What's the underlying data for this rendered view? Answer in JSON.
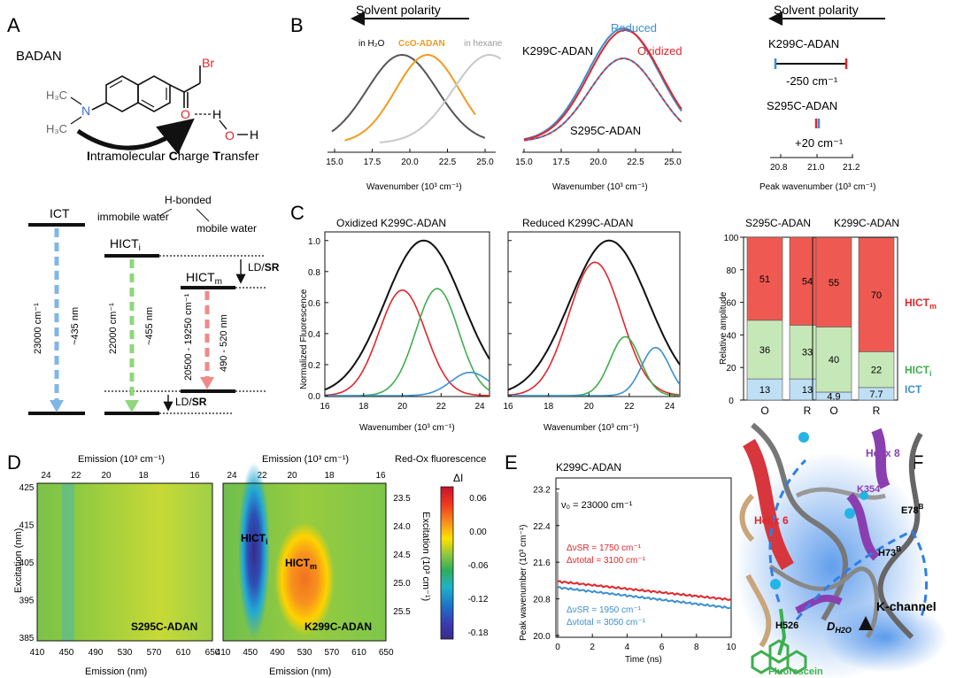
{
  "panels": {
    "A": "A",
    "B": "B",
    "C": "C",
    "D": "D",
    "E": "E",
    "F": "F"
  },
  "colors": {
    "black": "#111111",
    "red": "#e2262b",
    "green": "#3fae4f",
    "blue": "#3b8fd0",
    "orange": "#f39a1e",
    "grey": "#bdbdbd",
    "dark": "#555555",
    "red_fill": "#ee5a52",
    "green_fill": "#c6e7b8",
    "blue_fill": "#bfe0f4",
    "purple": "#8a3fb0"
  },
  "panelA": {
    "molecule_name": "BADAN",
    "ict_label_I": "I",
    "ict_label_rest1": "ntramolecular ",
    "ict_label_C": "C",
    "ict_label_rest2": "harge ",
    "ict_label_T": "T",
    "ict_label_rest3": "ransfer",
    "atoms": {
      "h3c_top": "H₃C",
      "h3c_bot": "H₃C",
      "n": "N",
      "br": "Br",
      "o": "O",
      "h_dash": "H",
      "oh_o": "O",
      "oh_h": "H"
    },
    "levels": {
      "ict": "ICT",
      "hict_i": "HICT",
      "hict_i_sub": "i",
      "hict_m": "HICT",
      "hict_m_sub": "m",
      "hbonded": "H-bonded",
      "immobile": "immobile water",
      "mobile": "mobile water",
      "ldsr_top_ld": "LD/",
      "ldsr_top_sr": "SR",
      "ldsr_bot_ld": "LD/",
      "ldsr_bot_sr": "SR",
      "ict_arrow": [
        "23000 cm⁻¹",
        "~435 nm"
      ],
      "hicti_arrow": [
        "22000 cm⁻¹",
        "~455 nm"
      ],
      "hictm_arrow": [
        "20500 - 19250 cm⁻¹",
        "490 - 520 nm"
      ]
    }
  },
  "panelB": {
    "solvent_polarity": "Solvent polarity",
    "b1": {
      "labels": [
        "in H₂O",
        "CcO-ADAN",
        "in hexane"
      ],
      "ticks": [
        "15.0",
        "17.5",
        "20.0",
        "22.5",
        "25.0"
      ]
    },
    "b2": {
      "reduced": "Reduced",
      "oxidized": "Oxidized",
      "k299": "K299C-ADAN",
      "s295": "S295C-ADAN",
      "ticks": [
        "15.0",
        "17.5",
        "20.0",
        "22.5",
        "25.0"
      ]
    },
    "xlabel": "Wavenumber (10³ cm⁻¹)",
    "b3": {
      "k299": "K299C-ADAN",
      "k299_shift": "-250 cm⁻¹",
      "s295": "S295C-ADAN",
      "s295_shift": "+20 cm⁻¹",
      "ticks": [
        "20.8",
        "21.0",
        "21.2"
      ],
      "xlabel": "Peak wavenumber (10³ cm⁻¹)"
    }
  },
  "panelC": {
    "ox_title": "Oxidized K299C-ADAN",
    "red_title": "Reduced K299C-ADAN",
    "ylabel": "Normalized Fluorescence",
    "xlabel": "Wavenumber (10³ cm⁻¹)",
    "yticks": [
      "0.0",
      "0.2",
      "0.4",
      "0.6",
      "0.8",
      "1.0"
    ],
    "xticks": [
      "16",
      "18",
      "20",
      "22",
      "24"
    ],
    "bar_ylabel": "Relative amplitude",
    "bar_yticks": [
      "0",
      "20",
      "40",
      "60",
      "80",
      "100"
    ],
    "s295_title": "S295C-ADAN",
    "k299_title": "K299C-ADAN",
    "legend": {
      "hictm": "HICT",
      "hictm_sub": "m",
      "hicti": "HICT",
      "hicti_sub": "i",
      "ict": "ICT"
    }
  },
  "chart_data": [
    {
      "type": "bar",
      "title": "S295C-ADAN",
      "ylabel": "Relative amplitude",
      "categories": [
        "O",
        "R"
      ],
      "ylim": [
        0,
        100
      ],
      "series": [
        {
          "name": "ICT",
          "values": [
            13,
            13
          ]
        },
        {
          "name": "HICTi",
          "values": [
            36,
            33
          ]
        },
        {
          "name": "HICTm",
          "values": [
            51,
            54
          ]
        }
      ]
    },
    {
      "type": "bar",
      "title": "K299C-ADAN",
      "ylabel": "Relative amplitude",
      "categories": [
        "O",
        "R"
      ],
      "ylim": [
        0,
        100
      ],
      "series": [
        {
          "name": "ICT",
          "values": [
            4.9,
            7.7
          ]
        },
        {
          "name": "HICTi",
          "values": [
            40,
            22
          ]
        },
        {
          "name": "HICTm",
          "values": [
            55,
            70
          ]
        }
      ]
    },
    {
      "type": "line",
      "title": "K299C-ADAN",
      "xlabel": "Time (ns)",
      "ylabel": "Peak wavenumber (10³ cm⁻¹)",
      "xlim": [
        0,
        10
      ],
      "ylim": [
        20.0,
        23.4
      ],
      "series": [
        {
          "name": "Oxidized",
          "x": [
            0,
            10
          ],
          "y": [
            21.18,
            20.78
          ]
        },
        {
          "name": "Reduced",
          "x": [
            0,
            10
          ],
          "y": [
            21.05,
            20.6
          ]
        }
      ]
    },
    {
      "type": "line",
      "title": "Oxidized K299C-ADAN",
      "xlabel": "Wavenumber (10³ cm⁻¹)",
      "ylabel": "Normalized Fluorescence",
      "xlim": [
        16,
        24.5
      ],
      "ylim": [
        0,
        1.05
      ],
      "series": [
        {
          "name": "total",
          "center": 21.1,
          "width": 2.0,
          "amplitude": 1.0
        },
        {
          "name": "HICTm",
          "center": 20.0,
          "width": 1.2,
          "amplitude": 0.68
        },
        {
          "name": "HICTi",
          "center": 21.8,
          "width": 1.1,
          "amplitude": 0.69
        },
        {
          "name": "ICT",
          "center": 23.5,
          "width": 1.0,
          "amplitude": 0.15
        }
      ]
    },
    {
      "type": "line",
      "title": "Reduced K299C-ADAN",
      "xlabel": "Wavenumber (10³ cm⁻¹)",
      "ylabel": "Normalized Fluorescence",
      "xlim": [
        16,
        24.5
      ],
      "ylim": [
        0,
        1.05
      ],
      "series": [
        {
          "name": "total",
          "center": 21.0,
          "width": 1.95,
          "amplitude": 1.0
        },
        {
          "name": "HICTm",
          "center": 20.3,
          "width": 1.3,
          "amplitude": 0.86
        },
        {
          "name": "HICTi",
          "center": 21.8,
          "width": 0.75,
          "amplitude": 0.38
        },
        {
          "name": "ICT",
          "center": 23.3,
          "width": 0.7,
          "amplitude": 0.31
        }
      ]
    }
  ],
  "panelD": {
    "top_axis": "Emission (10³ cm⁻¹)",
    "top_ticks": [
      "24",
      "22",
      "20",
      "18",
      "16"
    ],
    "ylabel": "Excitation (nm)",
    "yticks": [
      "425",
      "415",
      "405",
      "395",
      "385"
    ],
    "xlabel": "Emission (nm)",
    "xticks": [
      "410",
      "450",
      "490",
      "530",
      "570",
      "610",
      "650"
    ],
    "left_name": "S295C-ADAN",
    "right_name": "K299C-ADAN",
    "right_axis": "Excitation (10³ cm⁻¹)",
    "right_ticks": [
      "23.5",
      "24.0",
      "24.5",
      "25.0",
      "25.5"
    ],
    "hicti": "HICT",
    "hicti_sub": "i",
    "hictm": "HICT",
    "hictm_sub": "m",
    "cbar_title1": "Red-Ox fluorescence",
    "cbar_title2": "ΔI",
    "cbar_ticks": [
      "0.06",
      "0.00",
      "-0.06",
      "-0.12",
      "-0.18"
    ]
  },
  "panelE": {
    "title": "K299C-ADAN",
    "nu0": "ν₀ = 23000 cm⁻¹",
    "red1": "ΔνSR = 1750 cm⁻¹",
    "red2": "Δνtotal = 3100 cm⁻¹",
    "blue1": "ΔνSR = 1950 cm⁻¹",
    "blue2": "Δνtotal = 3050 cm⁻¹",
    "yticks": [
      "20.0",
      "20.8",
      "21.6",
      "22.4",
      "23.2"
    ],
    "xticks": [
      "0",
      "2",
      "4",
      "6",
      "8",
      "10"
    ],
    "xlabel": "Time (ns)",
    "ylabel": "Peak wavenumber (10³ cm⁻¹)"
  },
  "panelF": {
    "helix8": "Helix 8",
    "k354": "K354",
    "e78": "E78",
    "e78_sup": "B",
    "helix6": "Helix 6",
    "h73": "H73",
    "h73_sup": "B",
    "h526": "H526",
    "dh2o": "D",
    "dh2o_sub": "H2O",
    "kchannel": "K-channel",
    "fluorescein": "Fluorescein"
  }
}
